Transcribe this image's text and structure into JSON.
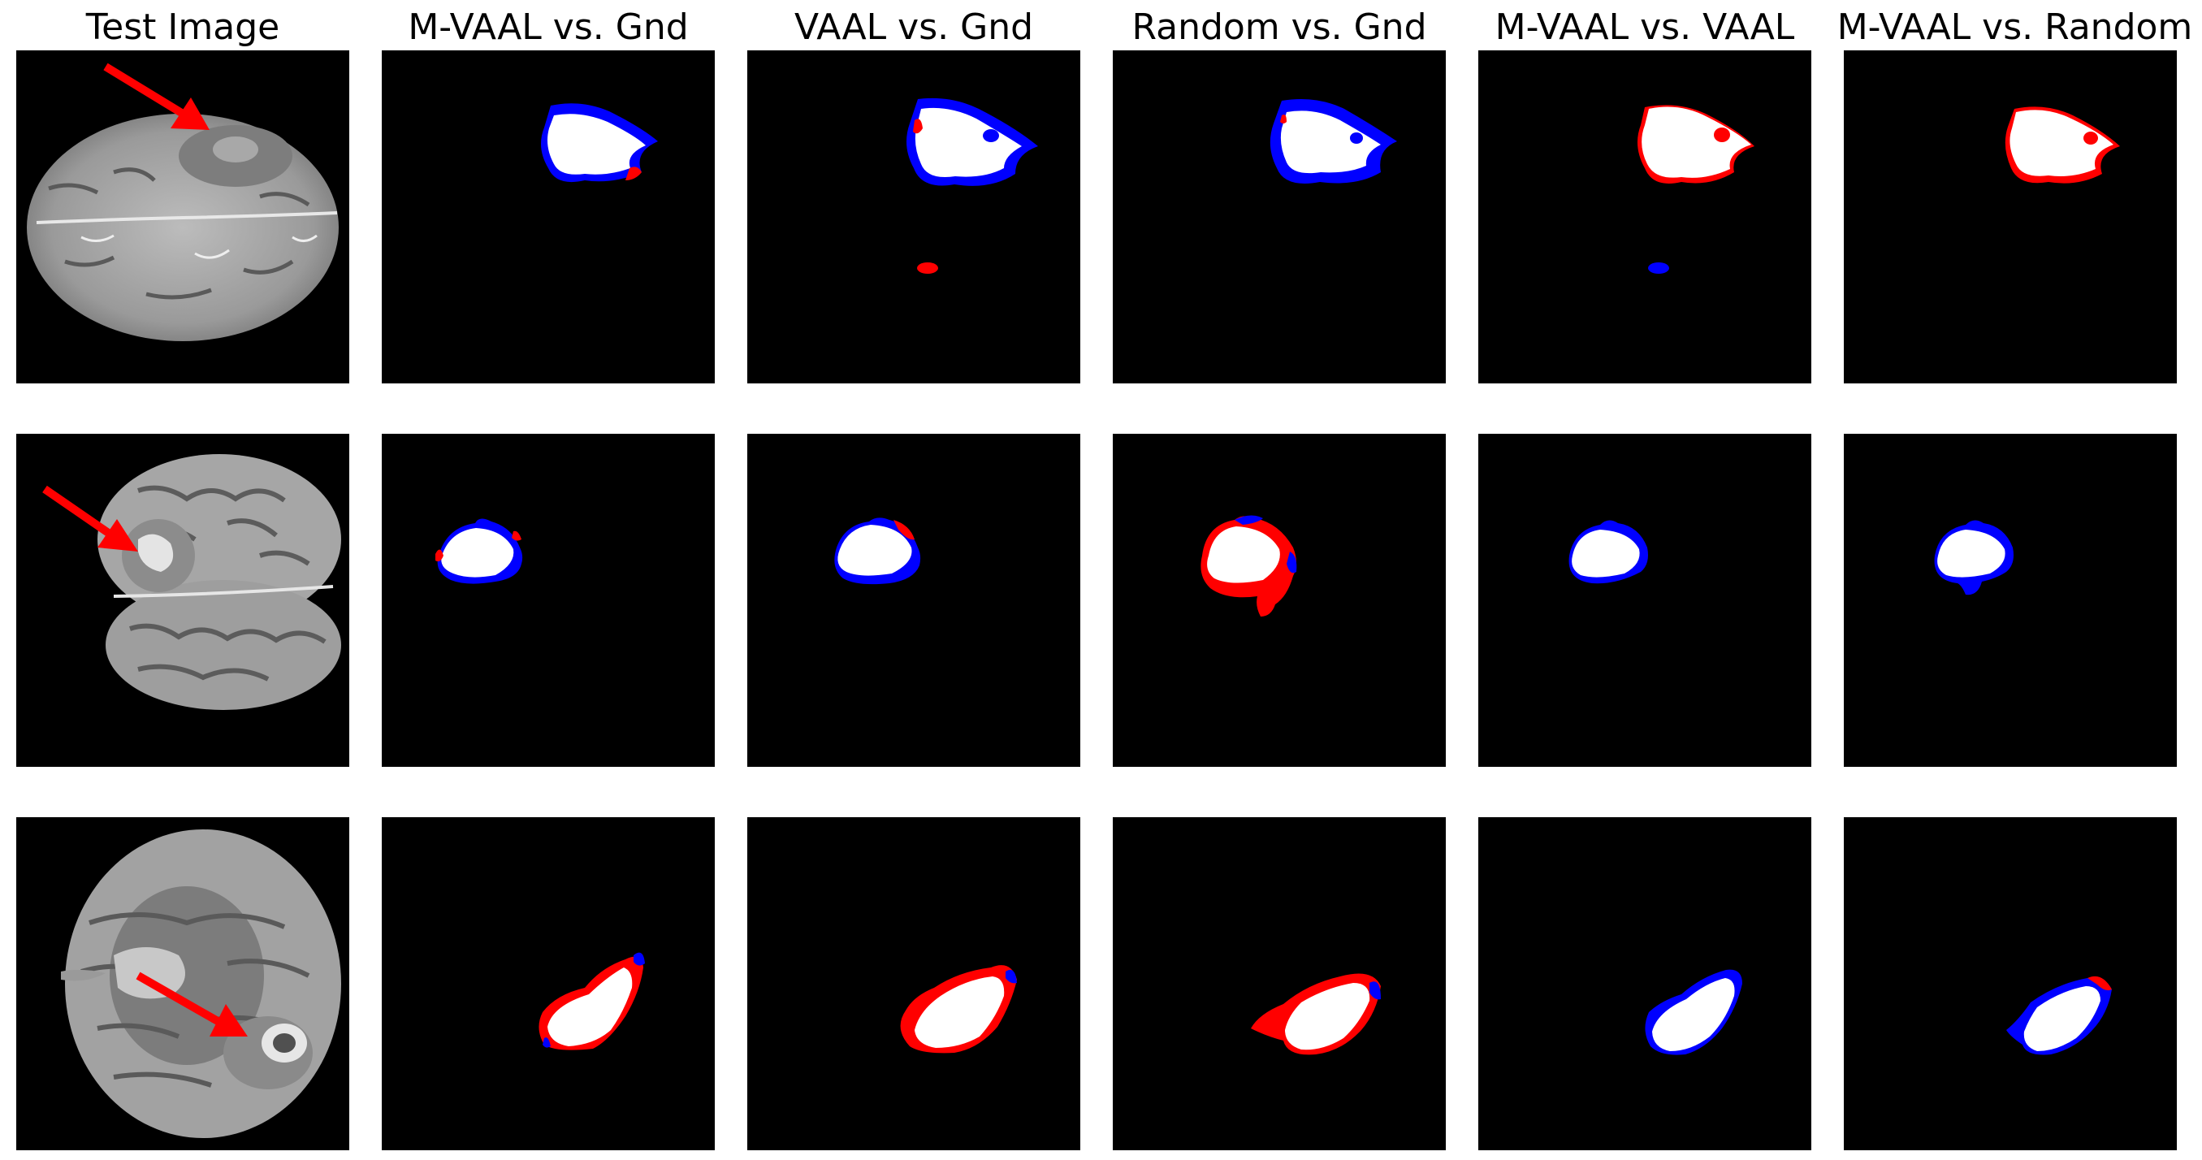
{
  "column_titles": [
    "Test Image",
    "M-VAAL vs. Gnd",
    "VAAL vs. Gnd",
    "Random vs. Gnd",
    "M-VAAL vs. VAAL",
    "M-VAAL vs. Random"
  ],
  "colors": {
    "background": "#000000",
    "overlap": "#ffffff",
    "blue_region": "#0000ff",
    "red_region": "#ff0000",
    "arrow": "#ff0000"
  },
  "rows": [
    {
      "name": "row-1",
      "has_arrow": true
    },
    {
      "name": "row-2",
      "has_arrow": true
    },
    {
      "name": "row-3",
      "has_arrow": true
    }
  ]
}
